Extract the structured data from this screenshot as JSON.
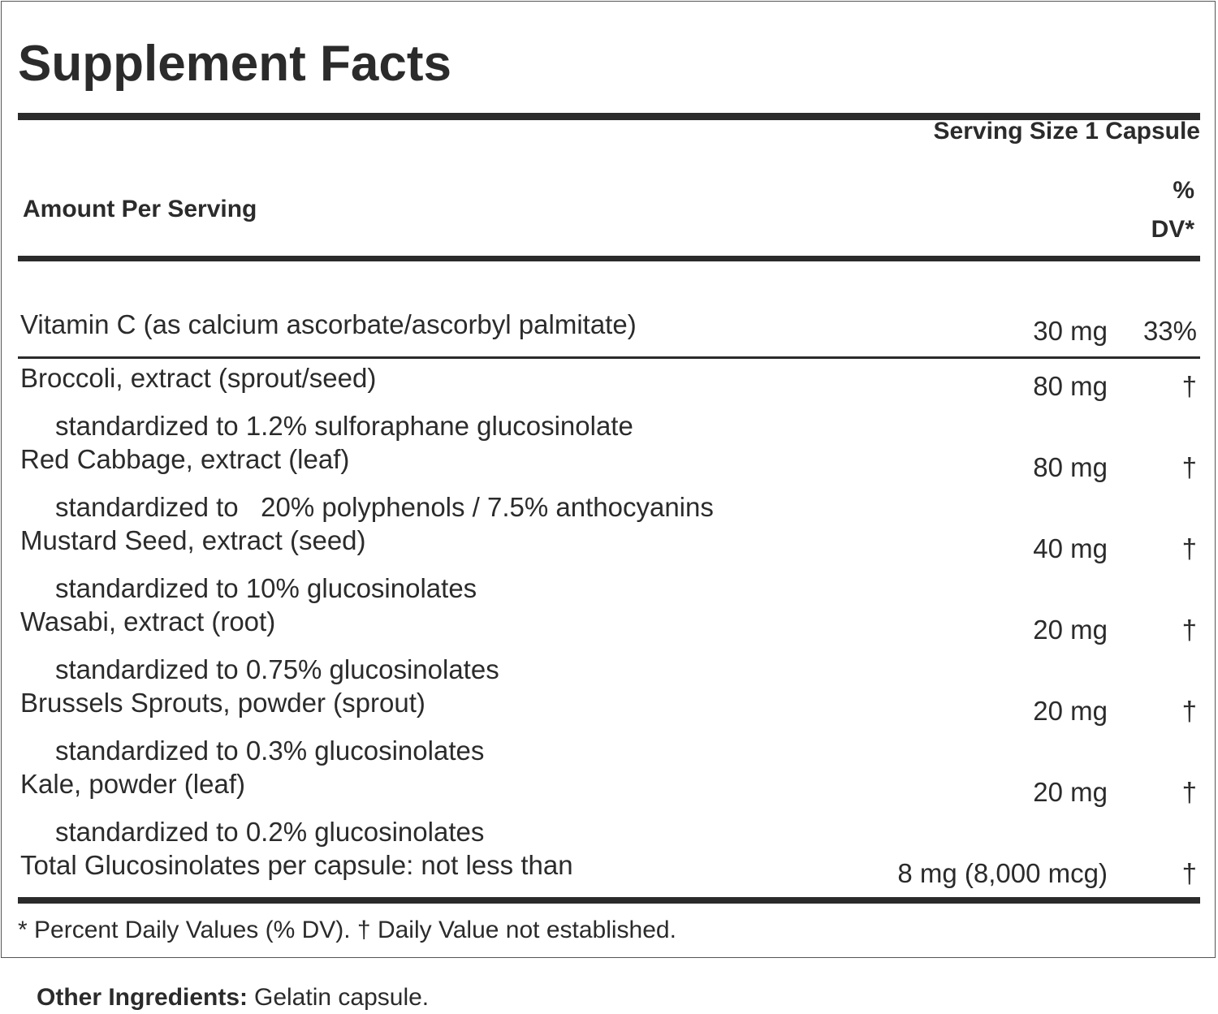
{
  "header": {
    "title": "Supplement Facts",
    "serving_size": "Serving Size 1 Capsule"
  },
  "columns": {
    "amount_label": "Amount Per Serving",
    "dv_label_lines": [
      "%",
      "DV*"
    ]
  },
  "vitamin_row": {
    "name": "Vitamin C (as calcium ascorbate/ascorbyl palmitate)",
    "amount": "30 mg",
    "dv": "33%"
  },
  "rows": [
    {
      "name": "Broccoli, extract (sprout/seed)",
      "amount": "80 mg",
      "dv": "†",
      "note": "standardized to 1.2% sulforaphane glucosinolate"
    },
    {
      "name": "Red Cabbage, extract (leaf)",
      "amount": "80 mg",
      "dv": "†",
      "note": "standardized to   20% polyphenols / 7.5% anthocyanins"
    },
    {
      "name": "Mustard Seed, extract (seed)",
      "amount": "40 mg",
      "dv": "†",
      "note": "standardized to 10% glucosinolates"
    },
    {
      "name": "Wasabi, extract (root)",
      "amount": "20 mg",
      "dv": "†",
      "note": "standardized to 0.75% glucosinolates"
    },
    {
      "name": "Brussels Sprouts, powder (sprout)",
      "amount": "20 mg",
      "dv": "†",
      "note": "standardized to 0.3% glucosinolates"
    },
    {
      "name": "Kale, powder (leaf)",
      "amount": "20 mg",
      "dv": "†",
      "note": "standardized to 0.2% glucosinolates"
    },
    {
      "name": "Total Glucosinolates per capsule: not less than",
      "amount": "8 mg (8,000 mcg)",
      "dv": "†"
    }
  ],
  "footnote": "* Percent Daily Values (% DV). † Daily Value not established.",
  "other_ingredients": {
    "label": "Other Ingredients:",
    "text": "Gelatin capsule."
  }
}
